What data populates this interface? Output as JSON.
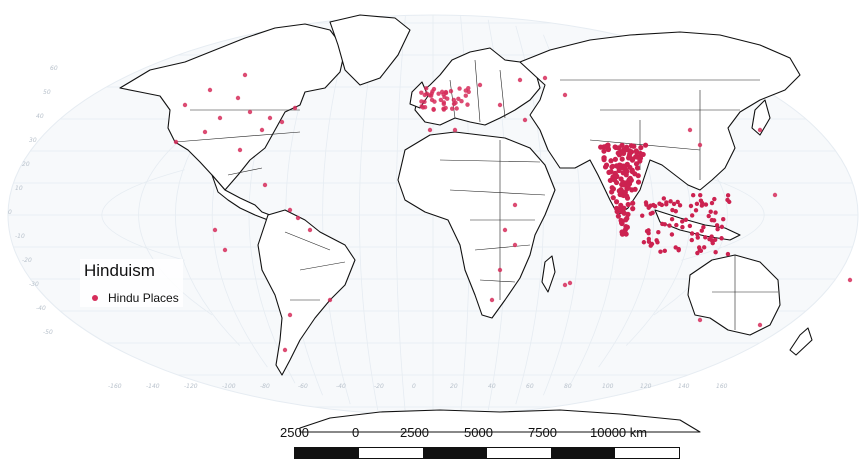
{
  "legend": {
    "title": "Hinduism",
    "item_label": "Hindu Places",
    "marker_color": "#d62d5b"
  },
  "scalebar": {
    "labels": [
      "2500",
      "0",
      "2500",
      "5000",
      "7500",
      "10000 km"
    ]
  },
  "graticule": {
    "lat_labels": [
      "60",
      "50",
      "40",
      "30",
      "20",
      "10",
      "0",
      "-10",
      "-20",
      "-30",
      "-40",
      "-50"
    ],
    "lon_labels": [
      "-160",
      "-140",
      "-120",
      "-100",
      "-80",
      "-60",
      "-40",
      "-20",
      "0",
      "20",
      "40",
      "60",
      "80",
      "100",
      "120",
      "140",
      "160"
    ]
  },
  "colors": {
    "points": "#d62d5b",
    "land_fill": "#ffffff",
    "coastline": "#111111",
    "graticule": "#e6ecf2"
  }
}
